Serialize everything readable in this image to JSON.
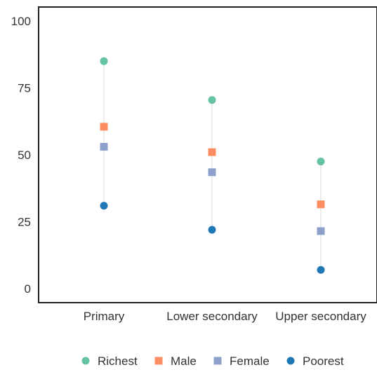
{
  "chart_data": {
    "type": "scatter",
    "categories": [
      "Primary",
      "Lower secondary",
      "Upper secondary"
    ],
    "series": [
      {
        "name": "Richest",
        "marker": "circle",
        "color": "#66c2a5",
        "values": [
          85,
          70.5,
          47.5
        ]
      },
      {
        "name": "Male",
        "marker": "square",
        "color": "#fc8d62",
        "values": [
          60.5,
          51,
          31.5
        ]
      },
      {
        "name": "Female",
        "marker": "square",
        "color": "#8da0cb",
        "values": [
          53,
          43.5,
          21.5
        ]
      },
      {
        "name": "Poorest",
        "marker": "circle",
        "color": "#1f78b4",
        "values": [
          31,
          22,
          7
        ]
      }
    ],
    "ylim": [
      -5,
      105
    ],
    "yticks": [
      0,
      25,
      50,
      75,
      100
    ],
    "grid": false,
    "range_line_color": "#d9d9d9",
    "legend_position": "bottom"
  }
}
